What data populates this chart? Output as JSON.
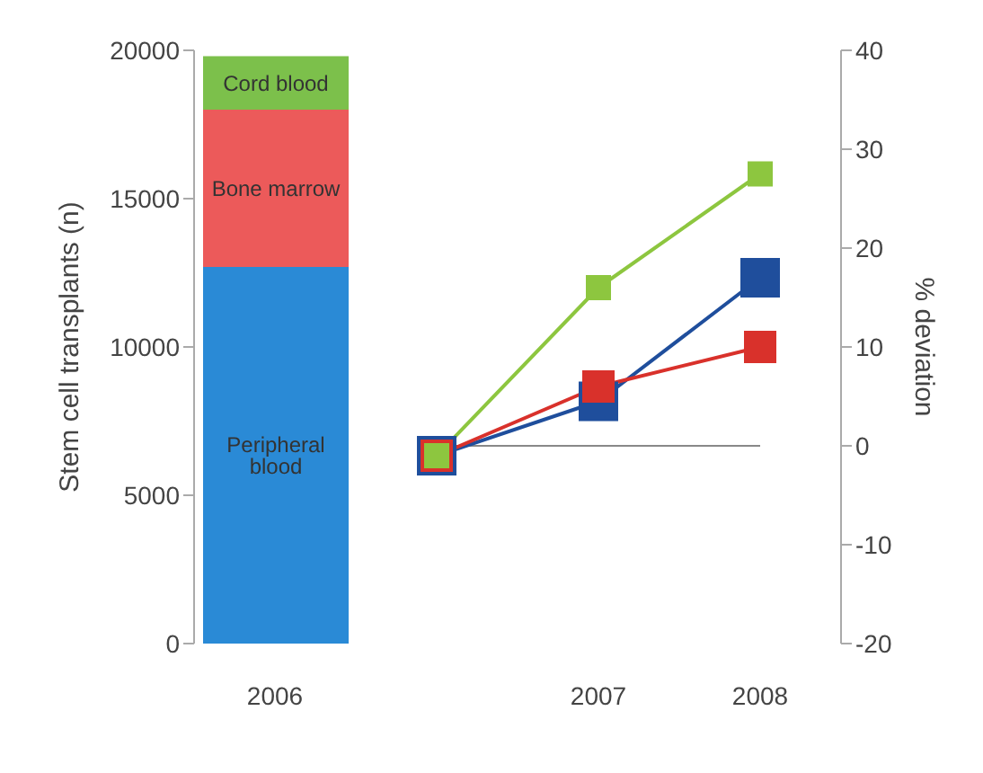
{
  "chart_data": {
    "type": "bar",
    "stacked": true,
    "categories": [
      "2006",
      null,
      "2007",
      "2008"
    ],
    "ylabel": "Stem cell transplants (n)",
    "y2label": "% deviation",
    "ylim": [
      0,
      20000
    ],
    "yticks": [
      0,
      5000,
      10000,
      15000,
      20000
    ],
    "y2lim": [
      -20,
      40
    ],
    "y2ticks": [
      -20,
      -10,
      0,
      10,
      20,
      30,
      40
    ],
    "grid": false,
    "marker": "square",
    "ref_lines": [
      {
        "axis": "y2",
        "value": 0,
        "color": "#888888"
      }
    ],
    "series": [
      {
        "name": "Peripheral blood",
        "color": "#2a8ad6",
        "values": [
          12700,
          null,
          null,
          null
        ]
      },
      {
        "name": "Bone marrow",
        "color": "#ec5a5a",
        "values": [
          5300,
          null,
          null,
          null
        ]
      },
      {
        "name": "Cord blood",
        "color": "#7cc04b",
        "values": [
          1800,
          null,
          null,
          null
        ]
      },
      {
        "type": "line",
        "axis": "y2",
        "color": "#1f4e9c",
        "values": [
          null,
          -1,
          4.5,
          17
        ]
      },
      {
        "type": "line",
        "axis": "y2",
        "color": "#d9312b",
        "values": [
          null,
          -1,
          6,
          10
        ]
      },
      {
        "type": "line",
        "axis": "y2",
        "color": "#8dc63f",
        "values": [
          null,
          -1,
          16,
          27.5
        ]
      }
    ]
  }
}
